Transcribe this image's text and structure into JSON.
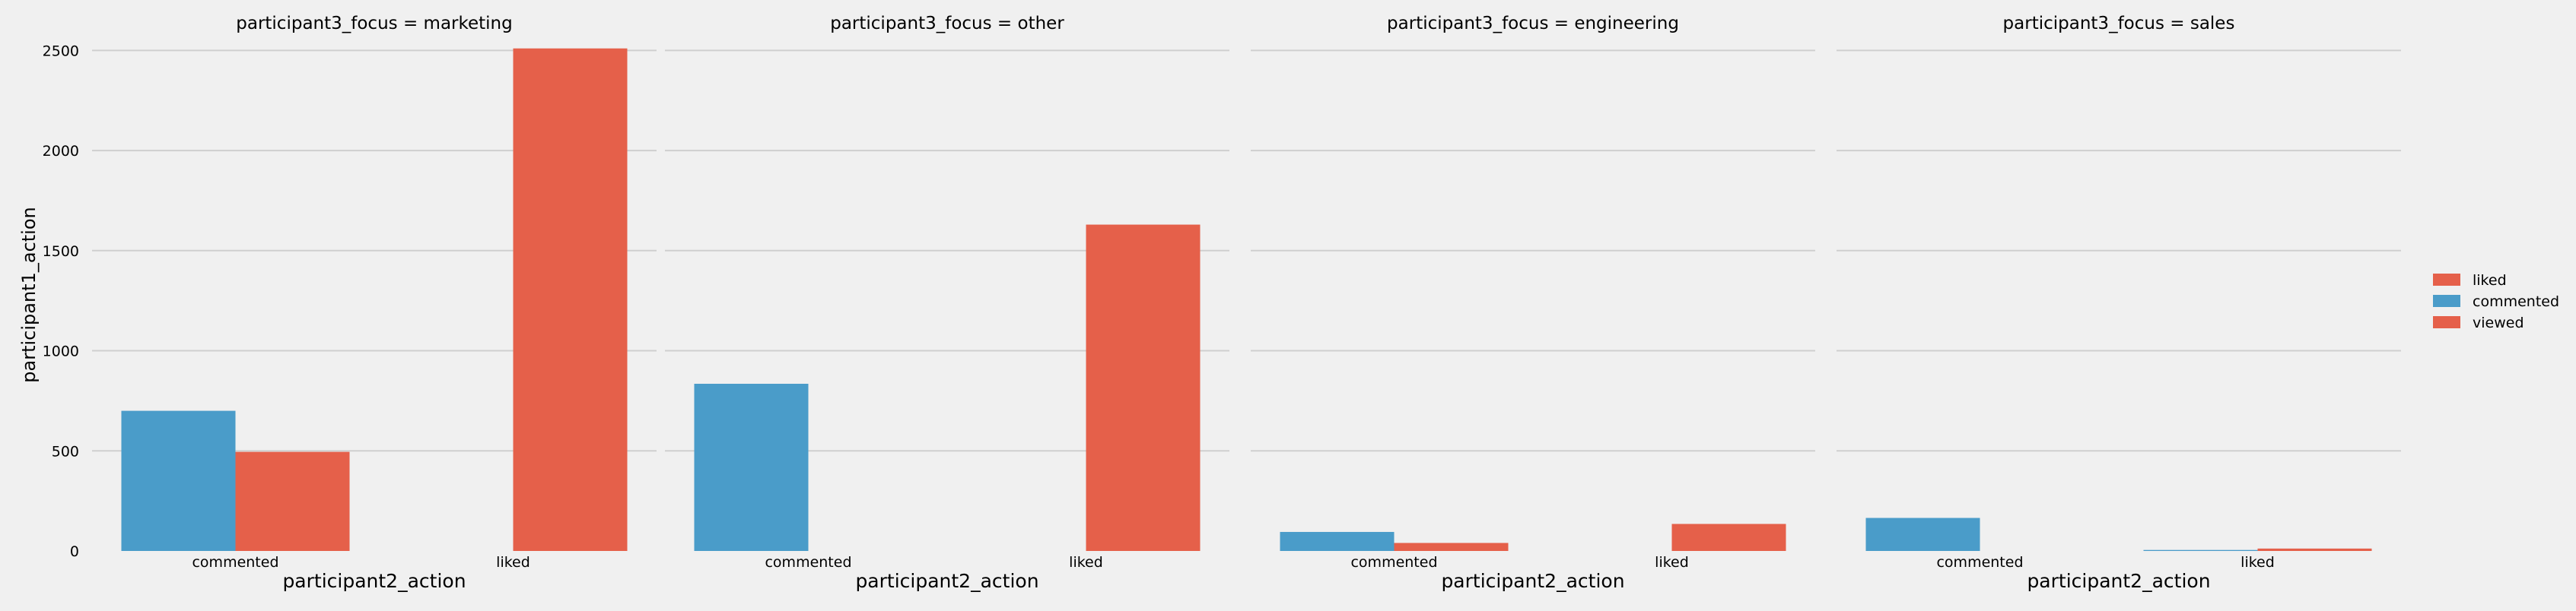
{
  "chart_data": {
    "type": "bar",
    "ylabel": "participant1_action",
    "ylim": [
      0,
      2600
    ],
    "yticks": [
      0,
      500,
      1000,
      1500,
      2000,
      2500
    ],
    "grid": true,
    "legend_position": "right",
    "legend": [
      {
        "label": "liked",
        "color": "#e5604a"
      },
      {
        "label": "commented",
        "color": "#4a9cc9"
      },
      {
        "label": "viewed",
        "color": "#e5604a"
      }
    ],
    "hue_order": [
      "commented",
      "viewed"
    ],
    "colors": {
      "commented": "#4a9cc9",
      "viewed": "#e5604a"
    },
    "panels": [
      {
        "title": "participant3_focus = marketing",
        "xlabel": "participant2_action",
        "categories": [
          "commented",
          "liked"
        ],
        "series": [
          {
            "name": "commented",
            "values": [
              700,
              0
            ]
          },
          {
            "name": "viewed",
            "values": [
              495,
              2510
            ]
          }
        ]
      },
      {
        "title": "participant3_focus = other",
        "xlabel": "participant2_action",
        "categories": [
          "commented",
          "liked"
        ],
        "series": [
          {
            "name": "commented",
            "values": [
              835,
              0
            ]
          },
          {
            "name": "viewed",
            "values": [
              0,
              1630
            ]
          }
        ]
      },
      {
        "title": "participant3_focus = engineering",
        "xlabel": "participant2_action",
        "categories": [
          "commented",
          "liked"
        ],
        "series": [
          {
            "name": "commented",
            "values": [
              95,
              0
            ]
          },
          {
            "name": "viewed",
            "values": [
              40,
              135
            ]
          }
        ]
      },
      {
        "title": "participant3_focus = sales",
        "xlabel": "participant2_action",
        "categories": [
          "commented",
          "liked"
        ],
        "series": [
          {
            "name": "commented",
            "values": [
              165,
              5
            ]
          },
          {
            "name": "viewed",
            "values": [
              0,
              12
            ]
          }
        ]
      }
    ]
  }
}
